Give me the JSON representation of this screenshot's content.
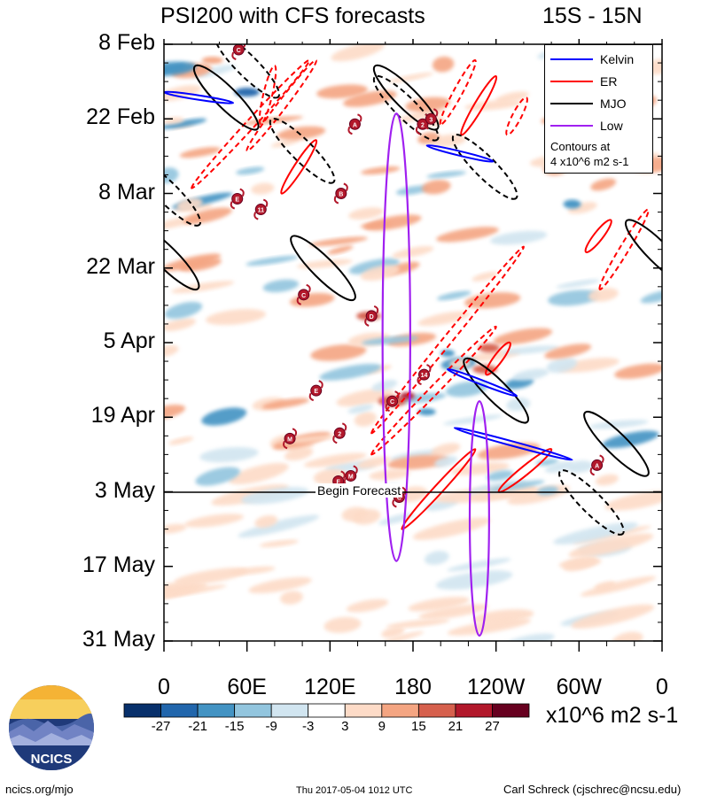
{
  "header": {
    "title": "PSI200 with CFS forecasts",
    "region": "15S - 15N"
  },
  "chart_data": {
    "type": "heatmap",
    "title": "PSI200 with CFS forecasts",
    "region": "15S - 15N",
    "y_tick_labels": [
      "8 Feb",
      "22 Feb",
      "8 Mar",
      "22 Mar",
      "5 Apr",
      "19 Apr",
      "3 May",
      "17 May",
      "31 May"
    ],
    "x_tick_labels": [
      "0",
      "60E",
      "120E",
      "180",
      "120W",
      "60W",
      "0"
    ],
    "x_range_deg": [
      0,
      360
    ],
    "y_range_days": [
      0,
      112
    ],
    "colorbar": {
      "levels": [
        "-27",
        "-21",
        "-15",
        "-9",
        "-3",
        "3",
        "9",
        "15",
        "21",
        "27"
      ],
      "colors": [
        "#08306b",
        "#2166ac",
        "#4393c3",
        "#92c5de",
        "#d1e5f0",
        "#ffffff",
        "#fddbc7",
        "#f4a582",
        "#d6604d",
        "#b2182b",
        "#67001f"
      ],
      "units": "x10^6 m2 s-1"
    },
    "legend": [
      {
        "label": "Kelvin",
        "color": "#0000ff"
      },
      {
        "label": "ER",
        "color": "#ff0000"
      },
      {
        "label": "MJO",
        "color": "#000000"
      },
      {
        "label": "Low",
        "color": "#a020f0"
      }
    ],
    "contour_note_line1": "Contours at",
    "contour_note_line2": "4 x10^6 m2 s-1",
    "forecast_start_label": "Begin Forecast",
    "forecast_start_day": 84,
    "mjo_ellipses": [
      {
        "lon": 45,
        "day": 10,
        "dash": false
      },
      {
        "lon": 175,
        "day": 10,
        "dash": false
      },
      {
        "lon": 60,
        "day": 4,
        "dash": true
      },
      {
        "lon": 100,
        "day": 20,
        "dash": true
      },
      {
        "lon": 175,
        "day": 12,
        "dash": true
      },
      {
        "lon": 3,
        "day": 28,
        "dash": true
      },
      {
        "lon": 232,
        "day": 23,
        "dash": true
      },
      {
        "lon": 115,
        "day": 42,
        "dash": false
      },
      {
        "lon": 2,
        "day": 40,
        "dash": false
      },
      {
        "lon": 357,
        "day": 39,
        "dash": false
      },
      {
        "lon": 240,
        "day": 65,
        "dash": false
      },
      {
        "lon": 327,
        "day": 75,
        "dash": false
      },
      {
        "lon": 309,
        "day": 86,
        "dash": true
      }
    ],
    "er_lines": [
      {
        "lon0": 110,
        "day0": 3,
        "lon1": 60,
        "day1": 20,
        "dash": true
      },
      {
        "lon0": 105,
        "day0": 3,
        "lon1": 20,
        "day1": 27,
        "dash": true
      },
      {
        "lon0": 80,
        "day0": 4,
        "lon1": 70,
        "day1": 15,
        "dash": true
      },
      {
        "lon0": 110,
        "day0": 18,
        "lon1": 85,
        "day1": 28,
        "dash": false
      },
      {
        "lon0": 225,
        "day0": 3,
        "lon1": 200,
        "day1": 15,
        "dash": true
      },
      {
        "lon0": 240,
        "day0": 6,
        "lon1": 215,
        "day1": 17,
        "dash": false
      },
      {
        "lon0": 262,
        "day0": 10,
        "lon1": 248,
        "day1": 17,
        "dash": true
      },
      {
        "lon0": 350,
        "day0": 31,
        "lon1": 315,
        "day1": 46,
        "dash": true
      },
      {
        "lon0": 323,
        "day0": 33,
        "lon1": 305,
        "day1": 39,
        "dash": false
      },
      {
        "lon0": 260,
        "day0": 38,
        "lon1": 150,
        "day1": 73,
        "dash": true
      },
      {
        "lon0": 240,
        "day0": 53,
        "lon1": 150,
        "day1": 77,
        "dash": true
      },
      {
        "lon0": 250,
        "day0": 56,
        "lon1": 233,
        "day1": 62,
        "dash": false
      },
      {
        "lon0": 225,
        "day0": 76,
        "lon1": 172,
        "day1": 91,
        "dash": false
      },
      {
        "lon0": 280,
        "day0": 76,
        "lon1": 242,
        "day1": 84,
        "dash": false
      }
    ],
    "kelvin_lines": [
      {
        "lon0": 0,
        "day0": 9,
        "lon1": 50,
        "day1": 11
      },
      {
        "lon0": 190,
        "day0": 19,
        "lon1": 238,
        "day1": 22
      },
      {
        "lon0": 205,
        "day0": 61,
        "lon1": 255,
        "day1": 66
      },
      {
        "lon0": 210,
        "day0": 72,
        "lon1": 295,
        "day1": 78
      }
    ],
    "low_ellipses": [
      {
        "lon": 168,
        "day": 55,
        "half_width_deg": 10,
        "half_height_days": 42
      },
      {
        "lon": 228,
        "day": 89,
        "half_width_deg": 7,
        "half_height_days": 22
      }
    ],
    "storm_markers": [
      {
        "label": "C",
        "lon": 54,
        "day": 1
      },
      {
        "label": "A",
        "lon": 138,
        "day": 15
      },
      {
        "label": "2",
        "lon": 187,
        "day": 15
      },
      {
        "label": "3",
        "lon": 193,
        "day": 14
      },
      {
        "label": "B",
        "lon": 128,
        "day": 28
      },
      {
        "lon": 53,
        "day": 29,
        "label": "E"
      },
      {
        "label": "11",
        "lon": 70,
        "day": 31
      },
      {
        "label": "C",
        "lon": 101,
        "day": 47
      },
      {
        "label": "D",
        "lon": 150,
        "day": 51
      },
      {
        "label": "14",
        "lon": 188,
        "day": 62
      },
      {
        "label": "E",
        "lon": 110,
        "day": 65
      },
      {
        "label": "C",
        "lon": 165,
        "day": 67
      },
      {
        "label": "M",
        "lon": 91,
        "day": 74
      },
      {
        "label": "2",
        "lon": 127,
        "day": 73
      },
      {
        "label": "A",
        "lon": 313,
        "day": 79
      },
      {
        "label": "M",
        "lon": 135,
        "day": 81
      },
      {
        "label": "F",
        "lon": 126,
        "day": 82
      },
      {
        "label": "C",
        "lon": 170,
        "day": 85
      }
    ]
  },
  "branding": {
    "logo_text": "NCICS",
    "site": "ncics.org/mjo",
    "timestamp": "Thu 2017-05-04 1012 UTC",
    "author": "Carl Schreck (cjschrec@ncsu.edu)"
  }
}
